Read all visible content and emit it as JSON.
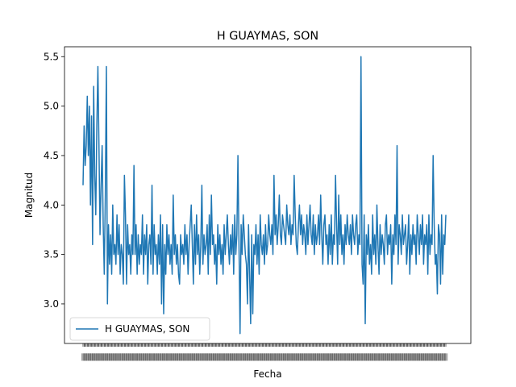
{
  "chart_data": {
    "type": "line",
    "title": "H GUAYMAS, SON",
    "xlabel": "Fecha",
    "ylabel": "Magnitud",
    "ylim": [
      2.6,
      5.6
    ],
    "yticks": [
      "3.0",
      "3.5",
      "4.0",
      "4.5",
      "5.0",
      "5.5"
    ],
    "grid": false,
    "legend_position": "lower-left",
    "series": [
      {
        "name": "H GUAYMAS, SON",
        "color": "#1f77b4",
        "values": [
          4.2,
          4.8,
          4.4,
          4.6,
          5.1,
          4.5,
          5.0,
          4.0,
          4.9,
          3.6,
          5.2,
          4.3,
          3.9,
          4.8,
          5.4,
          4.6,
          3.7,
          4.2,
          4.6,
          3.8,
          3.3,
          4.1,
          5.4,
          3.0,
          3.8,
          3.4,
          3.7,
          3.3,
          4.0,
          3.5,
          3.6,
          3.4,
          3.9,
          3.5,
          3.8,
          3.3,
          3.6,
          3.5,
          3.2,
          4.3,
          3.9,
          3.2,
          3.8,
          3.5,
          3.6,
          3.3,
          3.7,
          3.5,
          4.4,
          3.5,
          3.8,
          3.3,
          3.7,
          3.4,
          3.6,
          3.5,
          3.9,
          3.3,
          3.7,
          3.5,
          3.8,
          3.2,
          3.6,
          3.7,
          3.4,
          4.2,
          3.3,
          3.8,
          3.5,
          3.6,
          3.3,
          3.7,
          3.4,
          3.9,
          3.0,
          3.8,
          2.9,
          3.6,
          3.3,
          3.8,
          3.5,
          3.7,
          3.4,
          3.6,
          3.3,
          4.1,
          3.5,
          3.7,
          3.4,
          3.6,
          3.3,
          3.2,
          3.7,
          3.5,
          3.6,
          3.4,
          3.8,
          3.5,
          3.7,
          3.3,
          3.6,
          3.8,
          4.0,
          3.6,
          3.2,
          3.8,
          3.4,
          3.9,
          3.5,
          3.7,
          3.3,
          3.6,
          4.2,
          3.4,
          3.7,
          3.5,
          3.6,
          3.8,
          3.3,
          3.9,
          3.5,
          4.1,
          3.6,
          3.7,
          3.4,
          3.6,
          3.2,
          3.8,
          3.5,
          3.7,
          3.4,
          3.6,
          3.3,
          3.8,
          3.5,
          3.7,
          3.9,
          3.6,
          3.4,
          3.7,
          3.5,
          3.8,
          3.3,
          3.9,
          3.5,
          3.7,
          4.5,
          3.6,
          2.7,
          3.8,
          3.5,
          3.9,
          3.7,
          3.5,
          3.4,
          3.0,
          3.8,
          3.3,
          2.8,
          3.7,
          2.9,
          3.6,
          3.5,
          3.8,
          3.4,
          3.7,
          3.3,
          3.9,
          3.6,
          3.5,
          3.7,
          3.4,
          3.8,
          3.5,
          3.6,
          3.9,
          3.7,
          3.6,
          3.8,
          3.5,
          4.3,
          3.7,
          3.9,
          3.6,
          3.8,
          4.1,
          3.7,
          3.6,
          3.9,
          3.8,
          3.7,
          3.6,
          4.0,
          3.8,
          3.7,
          3.9,
          3.6,
          3.8,
          3.7,
          4.3,
          3.9,
          3.6,
          3.5,
          3.8,
          4.0,
          3.7,
          3.9,
          3.6,
          3.8,
          3.7,
          3.5,
          3.9,
          3.6,
          3.8,
          4.0,
          3.7,
          3.6,
          3.9,
          3.5,
          3.8,
          3.6,
          3.7,
          3.9,
          3.6,
          4.1,
          3.7,
          3.4,
          3.8,
          3.9,
          3.6,
          3.7,
          3.4,
          3.8,
          3.5,
          3.9,
          3.4,
          3.7,
          3.6,
          4.3,
          3.8,
          3.4,
          4.1,
          3.6,
          3.9,
          3.5,
          3.7,
          3.4,
          3.8,
          3.6,
          3.9,
          3.7,
          3.6,
          3.8,
          3.5,
          3.9,
          3.7,
          3.6,
          3.8,
          3.9,
          3.5,
          3.7,
          3.6,
          5.5,
          3.4,
          3.2,
          3.9,
          2.8,
          3.7,
          3.5,
          3.8,
          3.4,
          3.6,
          3.3,
          3.9,
          3.5,
          3.7,
          3.4,
          4.0,
          3.6,
          3.3,
          3.8,
          3.5,
          3.7,
          3.6,
          3.4,
          3.8,
          3.9,
          3.5,
          3.7,
          3.6,
          3.8,
          3.2,
          3.7,
          3.5,
          3.9,
          3.6,
          4.6,
          3.4,
          3.8,
          3.7,
          3.5,
          3.9,
          3.6,
          3.7,
          3.8,
          3.4,
          3.6,
          3.9,
          3.3,
          3.7,
          3.5,
          3.8,
          3.6,
          3.7,
          3.4,
          3.9,
          3.7,
          3.5,
          3.8,
          3.6,
          3.9,
          3.4,
          3.7,
          3.6,
          3.8,
          3.3,
          3.9,
          3.5,
          3.7,
          3.6,
          4.5,
          3.8,
          3.4,
          3.5,
          3.1,
          3.8,
          3.7,
          3.2,
          3.9,
          3.3,
          3.7,
          3.6,
          3.9
        ]
      }
    ]
  }
}
